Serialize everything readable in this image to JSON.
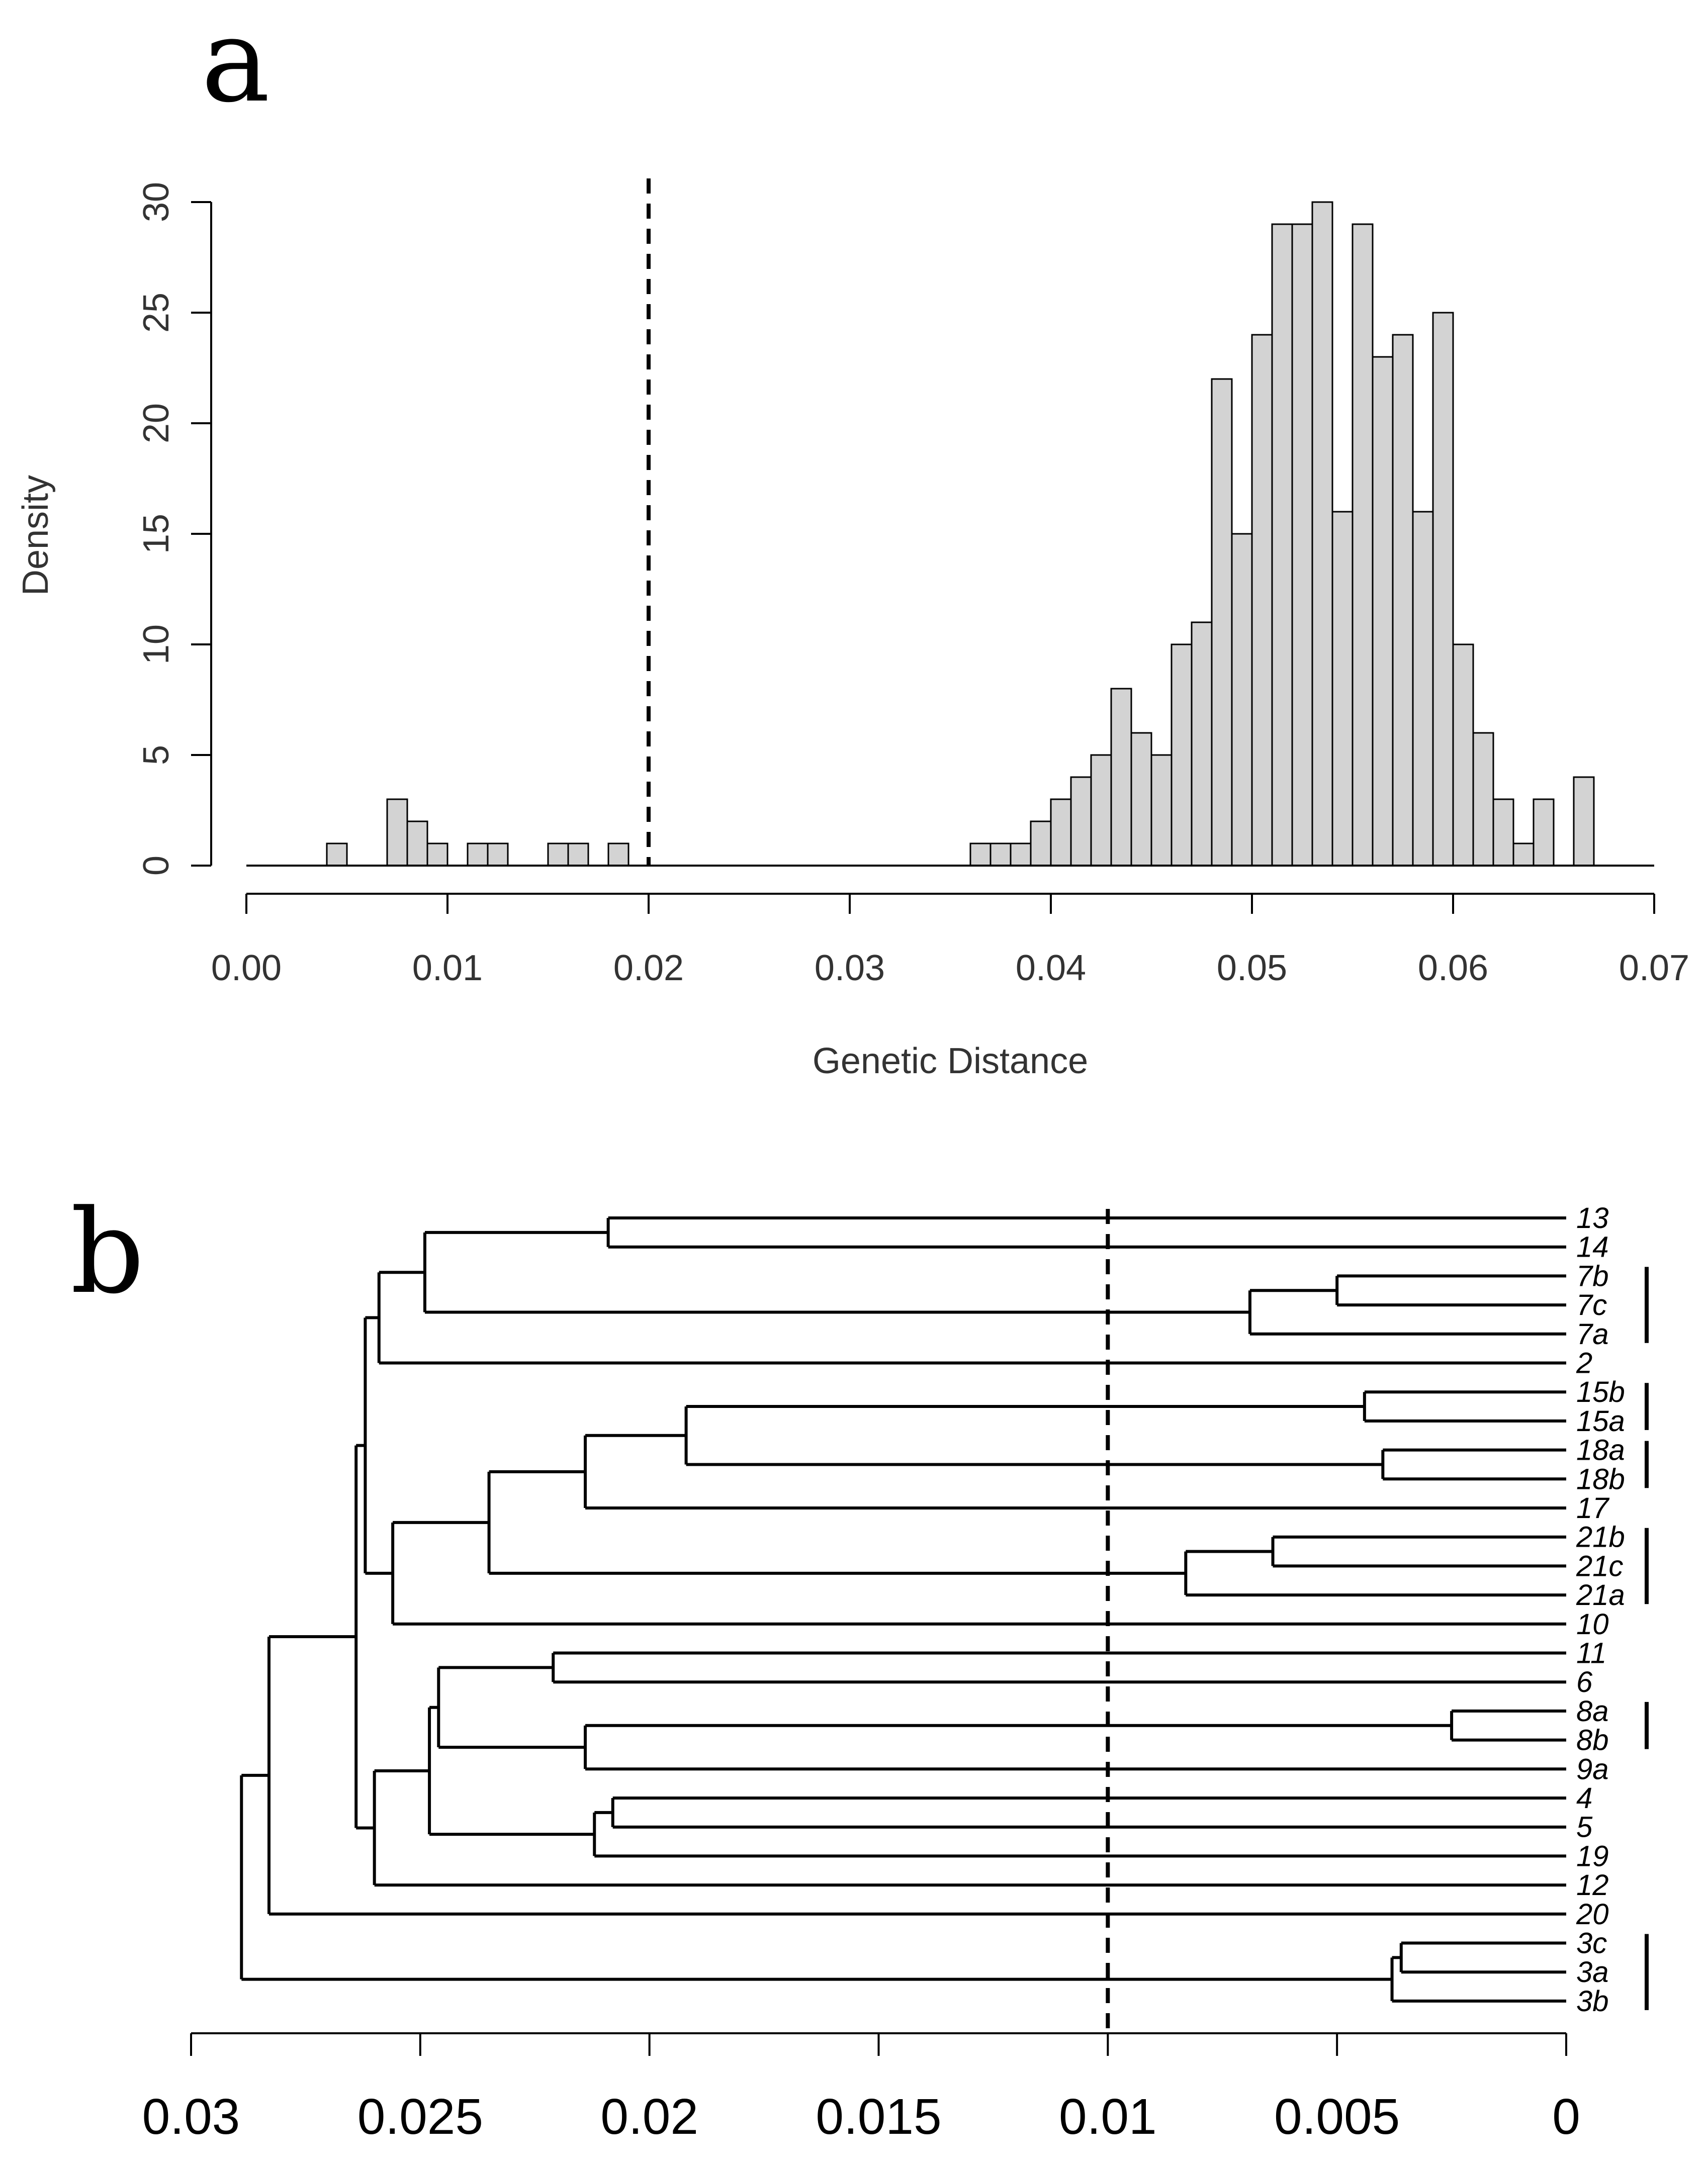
{
  "panels": {
    "a": {
      "letter": "a"
    },
    "b": {
      "letter": "b"
    }
  },
  "chart_data": [
    {
      "type": "bar",
      "subtype": "histogram",
      "panel": "a",
      "title": "",
      "xlabel": "Genetic Distance",
      "ylabel": "Density",
      "xlim": [
        0,
        0.07
      ],
      "ylim": [
        0,
        30
      ],
      "xticks": [
        "0.00",
        "0.01",
        "0.02",
        "0.03",
        "0.04",
        "0.05",
        "0.06",
        "0.07"
      ],
      "yticks": [
        "0",
        "5",
        "10",
        "15",
        "20",
        "25",
        "30"
      ],
      "bin_width": 0.001,
      "bin_starts": [
        0.004,
        0.007,
        0.008,
        0.009,
        0.011,
        0.012,
        0.015,
        0.016,
        0.018,
        0.036,
        0.037,
        0.038,
        0.039,
        0.04,
        0.041,
        0.042,
        0.043,
        0.044,
        0.045,
        0.046,
        0.047,
        0.048,
        0.049,
        0.05,
        0.051,
        0.052,
        0.053,
        0.054,
        0.055,
        0.056,
        0.057,
        0.058,
        0.059,
        0.06,
        0.061,
        0.062,
        0.063,
        0.064,
        0.066
      ],
      "values": [
        1,
        3,
        2,
        1,
        1,
        1,
        1,
        1,
        1,
        1,
        1,
        1,
        2,
        3,
        4,
        5,
        8,
        6,
        5,
        10,
        11,
        22,
        15,
        24,
        29,
        29,
        30,
        16,
        29,
        23,
        24,
        16,
        25,
        10,
        6,
        3,
        1,
        3,
        4
      ],
      "threshold": 0.02
    },
    {
      "type": "dendrogram",
      "panel": "b",
      "title": "",
      "xlabel": "",
      "ylabel": "",
      "xlim": [
        0.03,
        0
      ],
      "xticks": [
        "0.03",
        "0.025",
        "0.02",
        "0.015",
        "0.01",
        "0.005",
        "0"
      ],
      "threshold": 0.01,
      "leaves": [
        "13",
        "14",
        "7b",
        "7c",
        "7a",
        "2",
        "15b",
        "15a",
        "18a",
        "18b",
        "17",
        "21b",
        "21c",
        "21a",
        "10",
        "11",
        "6",
        "8a",
        "8b",
        "9a",
        "4",
        "5",
        "19",
        "12",
        "20",
        "3c",
        "3a",
        "3b"
      ],
      "merges": [
        {
          "id": "A",
          "children": [
            "13",
            "14"
          ],
          "height": 0.0209
        },
        {
          "id": "B",
          "children": [
            "7b",
            "7c"
          ],
          "height": 0.005
        },
        {
          "id": "C",
          "children": [
            "B",
            "7a"
          ],
          "height": 0.0069
        },
        {
          "id": "D",
          "children": [
            "A",
            "C"
          ],
          "height": 0.0249
        },
        {
          "id": "E",
          "children": [
            "D",
            "2"
          ],
          "height": 0.0259
        },
        {
          "id": "F",
          "children": [
            "15b",
            "15a"
          ],
          "height": 0.0044
        },
        {
          "id": "G",
          "children": [
            "18a",
            "18b"
          ],
          "height": 0.004
        },
        {
          "id": "H",
          "children": [
            "F",
            "G"
          ],
          "height": 0.0192
        },
        {
          "id": "I",
          "children": [
            "H",
            "17"
          ],
          "height": 0.0214
        },
        {
          "id": "J",
          "children": [
            "21b",
            "21c"
          ],
          "height": 0.0064
        },
        {
          "id": "K",
          "children": [
            "J",
            "21a"
          ],
          "height": 0.0083
        },
        {
          "id": "L",
          "children": [
            "I",
            "K"
          ],
          "height": 0.0235
        },
        {
          "id": "M",
          "children": [
            "L",
            "10"
          ],
          "height": 0.0256
        },
        {
          "id": "N",
          "children": [
            "E",
            "M"
          ],
          "height": 0.0262
        },
        {
          "id": "O",
          "children": [
            "11",
            "6"
          ],
          "height": 0.0221
        },
        {
          "id": "P",
          "children": [
            "8a",
            "8b"
          ],
          "height": 0.0025
        },
        {
          "id": "Q",
          "children": [
            "P",
            "9a"
          ],
          "height": 0.0214
        },
        {
          "id": "R",
          "children": [
            "O",
            "Q"
          ],
          "height": 0.0246
        },
        {
          "id": "S",
          "children": [
            "4",
            "5"
          ],
          "height": 0.0208
        },
        {
          "id": "T",
          "children": [
            "S",
            "19"
          ],
          "height": 0.0212
        },
        {
          "id": "U",
          "children": [
            "R",
            "T"
          ],
          "height": 0.0248
        },
        {
          "id": "V",
          "children": [
            "U",
            "12"
          ],
          "height": 0.026
        },
        {
          "id": "W",
          "children": [
            "N",
            "V"
          ],
          "height": 0.0264
        },
        {
          "id": "X",
          "children": [
            "W",
            "20"
          ],
          "height": 0.0283
        },
        {
          "id": "Y",
          "children": [
            "3c",
            "3a"
          ],
          "height": 0.0036
        },
        {
          "id": "Z",
          "children": [
            "Y",
            "3b"
          ],
          "height": 0.0038
        },
        {
          "id": "R0",
          "children": [
            "X",
            "Z"
          ],
          "height": 0.0289
        }
      ],
      "groups": [
        [
          "7b",
          "7c",
          "7a"
        ],
        [
          "15b",
          "15a"
        ],
        [
          "18a",
          "18b"
        ],
        [
          "21b",
          "21c",
          "21a"
        ],
        [
          "8a",
          "8b"
        ],
        [
          "3c",
          "3a",
          "3b"
        ]
      ]
    }
  ]
}
